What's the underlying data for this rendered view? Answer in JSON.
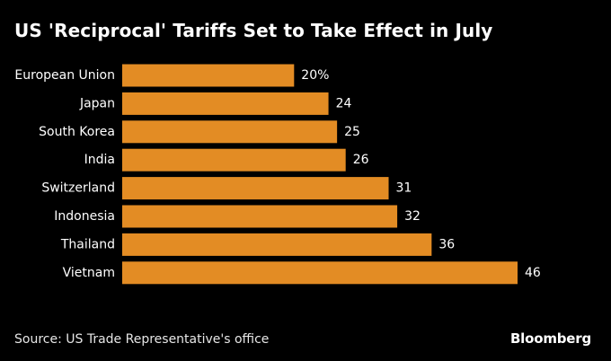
{
  "header": {
    "title": "US 'Reciprocal' Tariffs Set to Take Effect in July"
  },
  "footer": {
    "source": "Source: US Trade Representative's office",
    "brand": "Bloomberg"
  },
  "chart_data": {
    "type": "bar",
    "orientation": "horizontal",
    "title": "US 'Reciprocal' Tariffs Set to Take Effect in July",
    "xlabel": "",
    "ylabel": "",
    "categories": [
      "European Union",
      "Japan",
      "South Korea",
      "India",
      "Switzerland",
      "Indonesia",
      "Thailand",
      "Vietnam"
    ],
    "values": [
      20,
      24,
      25,
      26,
      31,
      32,
      36,
      46
    ],
    "value_labels": [
      "20%",
      "24",
      "25",
      "26",
      "31",
      "32",
      "36",
      "46"
    ],
    "xlim": [
      0,
      46
    ],
    "grid": false,
    "legend": "none",
    "bar_color": "#E38C24",
    "background": "#000000",
    "text_color": "#FFFFFF"
  }
}
